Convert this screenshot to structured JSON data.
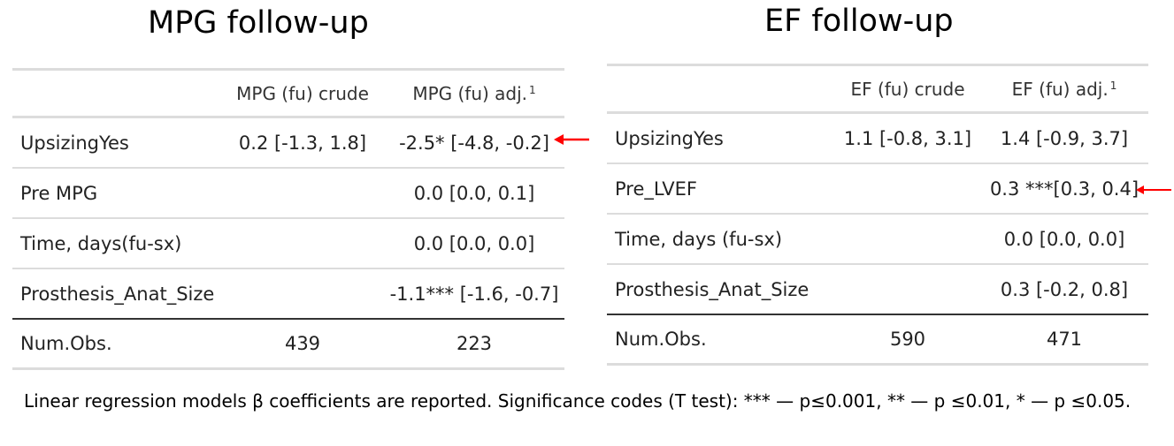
{
  "left": {
    "title": "MPG follow-up",
    "header": {
      "col1": "MPG (fu) crude",
      "col2": "MPG (fu) adj.",
      "col2_sup": "1"
    },
    "rows": [
      {
        "label": "UpsizingYes",
        "col1": "0.2 [-1.3, 1.8]",
        "col2": "-2.5* [-4.8, -0.2]"
      },
      {
        "label": "Pre MPG",
        "col1": "",
        "col2": "0.0 [0.0, 0.1]"
      },
      {
        "label": "Time, days(fu-sx)",
        "col1": "",
        "col2": "0.0 [0.0, 0.0]"
      },
      {
        "label": "Prosthesis_Anat_Size",
        "col1": "",
        "col2": "-1.1*** [-1.6, -0.7]"
      }
    ],
    "total": {
      "label": "Num.Obs.",
      "col1": "439",
      "col2": "223"
    }
  },
  "right": {
    "title": "EF follow-up",
    "header": {
      "col1": "EF (fu) crude",
      "col2": "EF (fu) adj.",
      "col2_sup": "1"
    },
    "rows": [
      {
        "label": "UpsizingYes",
        "col1": "1.1 [-0.8, 3.1]",
        "col2": "1.4 [-0.9, 3.7]"
      },
      {
        "label": "Pre_LVEF",
        "col1": "",
        "col2": "0.3 ***[0.3, 0.4]"
      },
      {
        "label": "Time, days (fu-sx)",
        "col1": "",
        "col2": "0.0 [0.0, 0.0]"
      },
      {
        "label": "Prosthesis_Anat_Size",
        "col1": "",
        "col2": "0.3 [-0.2, 0.8]"
      }
    ],
    "total": {
      "label": "Num.Obs.",
      "col1": "590",
      "col2": "471"
    }
  },
  "footnote": "Linear regression models β coefficients are reported. Significance codes (T test): *** — p≤0.001, ** —  p ≤0.01, * —  p ≤0.05.",
  "colors": {
    "arrow": "#ff0000",
    "rule": "#dcdcdc",
    "dark_rule": "#333333"
  },
  "icons": {
    "arrow": "left-arrow-icon"
  }
}
